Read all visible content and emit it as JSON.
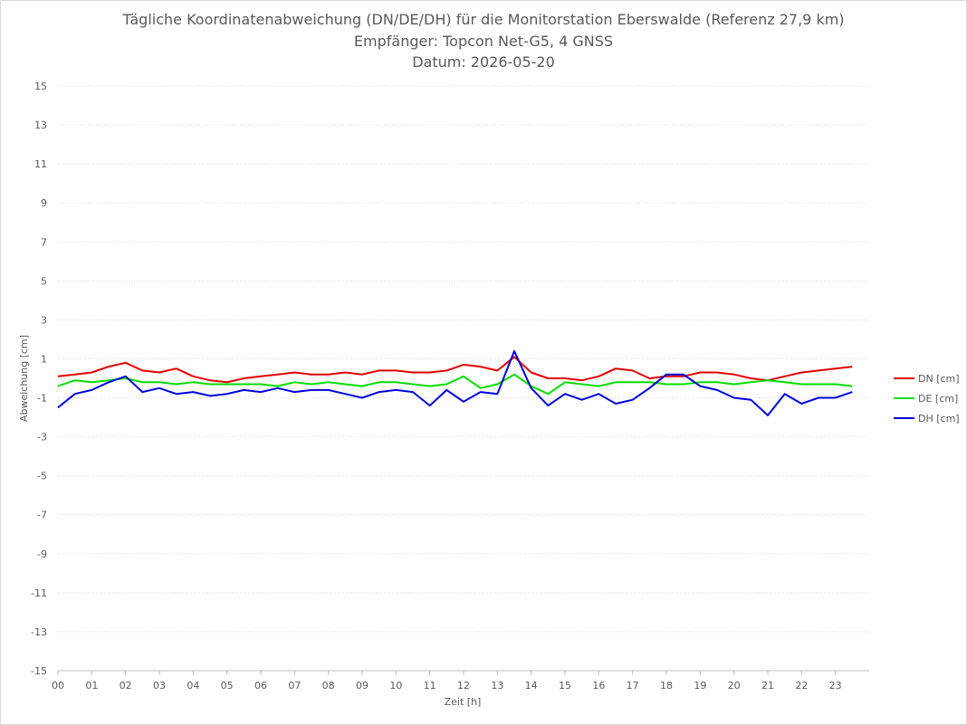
{
  "title": {
    "line1": "Tägliche Koordinatenabweichung (DN/DE/DH) für die Monitorstation Eberswalde (Referenz 27,9 km)",
    "line2": "Empfänger: Topcon Net-G5, 4 GNSS",
    "line3": "Datum: 2026-05-20"
  },
  "chart_data": {
    "type": "line",
    "xlabel": "Zeit [h]",
    "ylabel": "Abweichung [cm]",
    "xlim": [
      0,
      24
    ],
    "ylim": [
      -15,
      15
    ],
    "x_ticks": [
      "00",
      "01",
      "02",
      "03",
      "04",
      "05",
      "06",
      "07",
      "08",
      "09",
      "10",
      "11",
      "12",
      "13",
      "14",
      "15",
      "16",
      "17",
      "18",
      "19",
      "20",
      "21",
      "22",
      "23"
    ],
    "y_ticks": [
      15,
      13,
      11,
      9,
      7,
      5,
      3,
      1,
      -1,
      -3,
      -5,
      -7,
      -9,
      -11,
      -13,
      -15
    ],
    "grid": "horizontal dotted",
    "legend_position": "right",
    "x": [
      0,
      0.5,
      1,
      1.5,
      2,
      2.5,
      3,
      3.5,
      4,
      4.5,
      5,
      5.5,
      6,
      6.5,
      7,
      7.5,
      8,
      8.5,
      9,
      9.5,
      10,
      10.5,
      11,
      11.5,
      12,
      12.5,
      13,
      13.5,
      14,
      14.5,
      15,
      15.5,
      16,
      16.5,
      17,
      17.5,
      18,
      18.5,
      19,
      19.5,
      20,
      20.5,
      21,
      21.5,
      22,
      22.5,
      23,
      23.5
    ],
    "series": [
      {
        "name": "DN [cm]",
        "color": "#e00000",
        "values": [
          0.1,
          0.2,
          0.3,
          0.6,
          0.8,
          0.4,
          0.3,
          0.5,
          0.1,
          -0.1,
          -0.2,
          0.0,
          0.1,
          0.2,
          0.3,
          0.2,
          0.2,
          0.3,
          0.2,
          0.4,
          0.4,
          0.3,
          0.3,
          0.4,
          0.7,
          0.6,
          0.4,
          1.1,
          0.3,
          0.0,
          0.0,
          -0.1,
          0.1,
          0.5,
          0.4,
          0.0,
          0.1,
          0.1,
          0.3,
          0.3,
          0.2,
          0.0,
          -0.1,
          0.1,
          0.3,
          0.4,
          0.5,
          0.6
        ]
      },
      {
        "name": "DE [cm]",
        "color": "#00dd00",
        "values": [
          -0.4,
          -0.1,
          -0.2,
          -0.1,
          0.0,
          -0.2,
          -0.2,
          -0.3,
          -0.2,
          -0.3,
          -0.3,
          -0.3,
          -0.3,
          -0.4,
          -0.2,
          -0.3,
          -0.2,
          -0.3,
          -0.4,
          -0.2,
          -0.2,
          -0.3,
          -0.4,
          -0.3,
          0.1,
          -0.5,
          -0.3,
          0.2,
          -0.4,
          -0.8,
          -0.2,
          -0.3,
          -0.4,
          -0.2,
          -0.2,
          -0.2,
          -0.3,
          -0.3,
          -0.2,
          -0.2,
          -0.3,
          -0.2,
          -0.1,
          -0.2,
          -0.3,
          -0.3,
          -0.3,
          -0.4
        ]
      },
      {
        "name": "DH [cm]",
        "color": "#0000dd",
        "values": [
          -1.5,
          -0.8,
          -0.6,
          -0.2,
          0.1,
          -0.7,
          -0.5,
          -0.8,
          -0.7,
          -0.9,
          -0.8,
          -0.6,
          -0.7,
          -0.5,
          -0.7,
          -0.6,
          -0.6,
          -0.8,
          -1.0,
          -0.7,
          -0.6,
          -0.7,
          -1.4,
          -0.6,
          -1.2,
          -0.7,
          -0.8,
          1.4,
          -0.5,
          -1.4,
          -0.8,
          -1.1,
          -0.8,
          -1.3,
          -1.1,
          -0.5,
          0.2,
          0.2,
          -0.4,
          -0.6,
          -1.0,
          -1.1,
          -1.9,
          -0.8,
          -1.3,
          -1.0,
          -1.0,
          -0.7
        ]
      }
    ]
  }
}
